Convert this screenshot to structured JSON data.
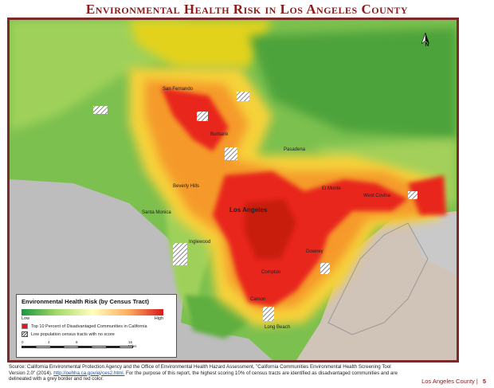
{
  "title": "Environmental Health Risk in Los Angeles County",
  "north_label": "N",
  "places": {
    "san_fernando": "San Fernando",
    "burbank": "Burbank",
    "pasadena": "Pasadena",
    "beverly_hills": "Beverly Hills",
    "santa_monica": "Santa Monica",
    "los_angeles": "Los Angeles",
    "el_monte": "El Monte",
    "west_covina": "West Covina",
    "inglewood": "Inglewood",
    "downey": "Downey",
    "compton": "Compton",
    "carson": "Carson",
    "long_beach": "Long Beach"
  },
  "legend": {
    "title": "Environmental Health Risk (by Census Tract)",
    "low": "Low",
    "high": "High",
    "top10": "Top 10 Percent of Disadvantaged Communities in California",
    "low_pop": "Low population census tracts with no score",
    "scale_ticks": [
      "0",
      "4",
      "8",
      "16 Miles"
    ],
    "colors": [
      "#1a9641",
      "#a6d96a",
      "#ffffbf",
      "#fdae61",
      "#d7191c"
    ]
  },
  "source": {
    "text1": "Source: California Environmental Protection Agency and the Office of Environmental Health Hazard Assessment, \"California Communities Environmental Health Screening Tool Version 2.0\" (2014).",
    "link": "http://oehha.ca.gov/ej/ces2.html.",
    "text2": "For the purpose of this report, the highest scoring 10% of census tracts are identified as disadvantaged communities and are delineated with a grey border and red color."
  },
  "footer": {
    "label": "Los Angeles County |",
    "page": "5"
  }
}
